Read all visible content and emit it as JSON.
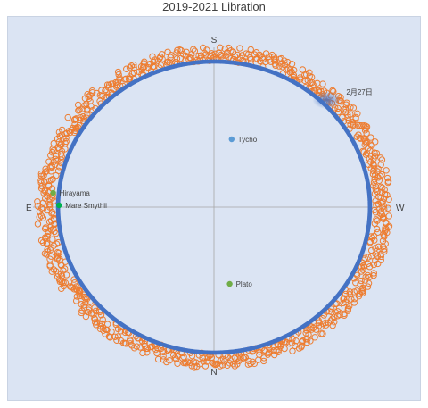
{
  "chart_data": {
    "type": "scatter",
    "title": "2019-2021 Libration",
    "directions": {
      "top": "S",
      "bottom": "N",
      "left": "E",
      "right": "W"
    },
    "x_range": [
      -1,
      1
    ],
    "y_range": [
      -1,
      1
    ],
    "grid": false,
    "legend": "none",
    "series": [
      {
        "color": "#4472c4",
        "marker": "filled-circle",
        "shape": "ellipse",
        "center": [
          0,
          0
        ],
        "radius_x": 0.795,
        "radius_y": 0.815
      },
      {
        "color": "#ed7d31",
        "marker": "open-circle",
        "shape": "ellipse-band",
        "center": [
          0,
          0
        ],
        "radius_x": 0.86,
        "radius_y": 0.86,
        "band": 0.05
      }
    ],
    "points": [
      {
        "name": "Tycho",
        "x": 0.09,
        "y": 0.38,
        "color": "#5b9bd5"
      },
      {
        "name": "Plato",
        "x": 0.08,
        "y": -0.43,
        "color": "#70ad47"
      },
      {
        "name": "Hirayama",
        "x": -0.82,
        "y": 0.08,
        "color": "#70ad47"
      },
      {
        "name": "Mare Smythii",
        "x": -0.79,
        "y": 0.01,
        "color": "#00b050"
      }
    ],
    "annotation": {
      "text": "2月27日",
      "x": 0.62,
      "y": 0.65,
      "color": "#4472c4"
    }
  }
}
